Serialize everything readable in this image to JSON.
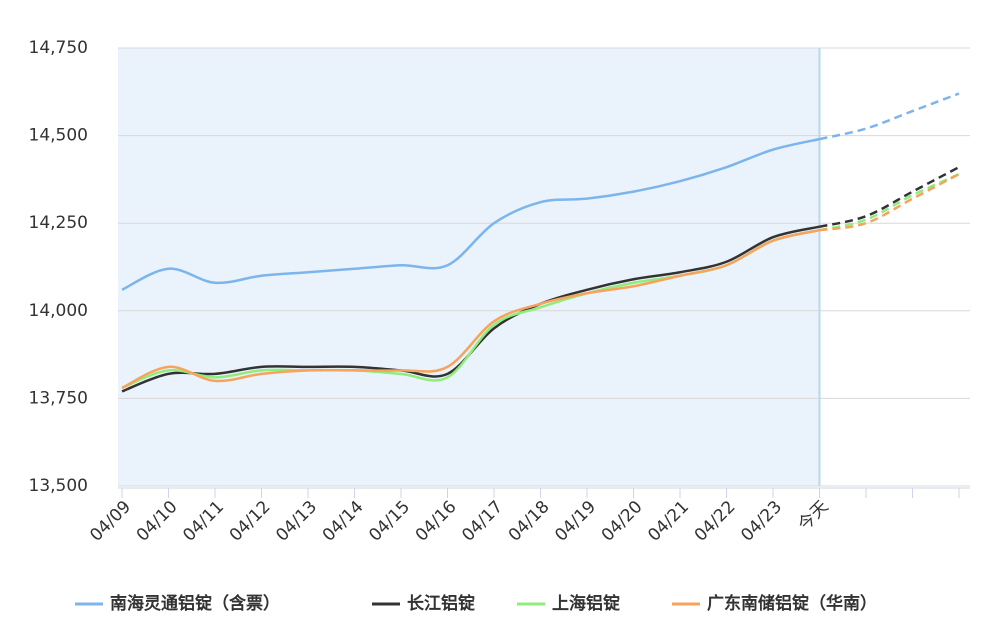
{
  "chart_data": {
    "type": "line",
    "categories": [
      "04/09",
      "04/10",
      "04/11",
      "04/12",
      "04/13",
      "04/14",
      "04/15",
      "04/16",
      "04/17",
      "04/18",
      "04/19",
      "04/20",
      "04/21",
      "04/22",
      "04/23",
      "今天",
      null,
      null,
      null
    ],
    "forecast_start_index": 15,
    "series": [
      {
        "name": "南海灵通铝锭（含票）",
        "color": "#7cb5ec",
        "values": [
          14060,
          14120,
          14080,
          14100,
          14110,
          14120,
          14130,
          14130,
          14250,
          14310,
          14320,
          14340,
          14370,
          14410,
          14460,
          14490,
          14520,
          14570,
          14620
        ]
      },
      {
        "name": "长江铝锭",
        "color": "#333333",
        "values": [
          13770,
          13820,
          13820,
          13840,
          13840,
          13840,
          13830,
          13820,
          13950,
          14020,
          14060,
          14090,
          14110,
          14140,
          14210,
          14240,
          14270,
          14340,
          14410
        ]
      },
      {
        "name": "上海铝锭",
        "color": "#90ed7d",
        "values": [
          13780,
          13830,
          13810,
          13830,
          13830,
          13830,
          13820,
          13810,
          13960,
          14010,
          14050,
          14080,
          14100,
          14130,
          14200,
          14230,
          14260,
          14330,
          14390
        ]
      },
      {
        "name": "广东南储铝锭（华南）",
        "color": "#f7a35c",
        "values": [
          13780,
          13840,
          13800,
          13820,
          13830,
          13830,
          13830,
          13840,
          13970,
          14020,
          14050,
          14070,
          14100,
          14130,
          14200,
          14230,
          14250,
          14320,
          14390
        ]
      }
    ],
    "ylim": [
      13500,
      14750
    ],
    "yticks": [
      {
        "value": 13500,
        "label": "13,500"
      },
      {
        "value": 13750,
        "label": "13,750"
      },
      {
        "value": 14000,
        "label": "14,000"
      },
      {
        "value": 14250,
        "label": "14,250"
      },
      {
        "value": 14500,
        "label": "14,500"
      },
      {
        "value": 14750,
        "label": "14,750"
      }
    ],
    "grid": true,
    "legend": "bottom"
  }
}
